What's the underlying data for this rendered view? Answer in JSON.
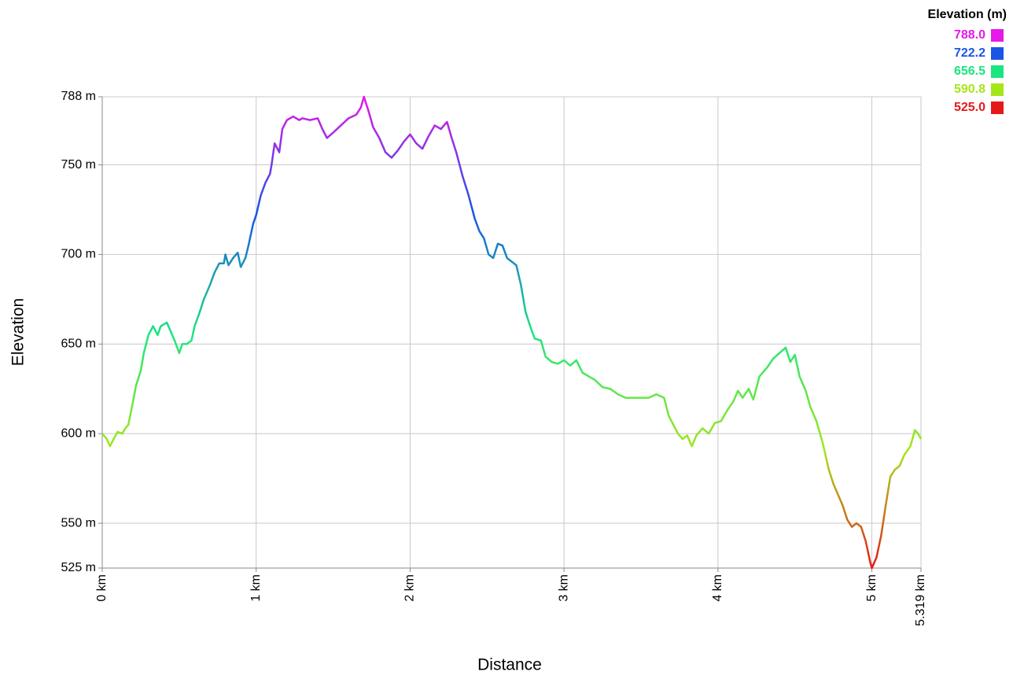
{
  "chart_data": {
    "type": "line",
    "xlabel": "Distance",
    "ylabel": "Elevation",
    "legend_title": "Elevation (m)",
    "color_scale": [
      {
        "value": 788,
        "label": "788.0",
        "color": "#e619e6"
      },
      {
        "value": 722.2,
        "label": "722.2",
        "color": "#1a55e6"
      },
      {
        "value": 656.5,
        "label": "656.5",
        "color": "#19e680"
      },
      {
        "value": 590.8,
        "label": "590.8",
        "color": "#a6e619"
      },
      {
        "value": 525,
        "label": "525.0",
        "color": "#e61919"
      }
    ],
    "grid": true,
    "xlim": [
      0,
      5.319
    ],
    "ylim": [
      525,
      788
    ],
    "xticks": [
      {
        "value": 0,
        "label": "0 km"
      },
      {
        "value": 1,
        "label": "1 km"
      },
      {
        "value": 2,
        "label": "2 km"
      },
      {
        "value": 3,
        "label": "3 km"
      },
      {
        "value": 4,
        "label": "4 km"
      },
      {
        "value": 5,
        "label": "5 km"
      },
      {
        "value": 5.319,
        "label": "5.319 km"
      }
    ],
    "yticks": [
      {
        "value": 525,
        "label": "525 m"
      },
      {
        "value": 550,
        "label": "550 m"
      },
      {
        "value": 600,
        "label": "600 m"
      },
      {
        "value": 650,
        "label": "650 m"
      },
      {
        "value": 700,
        "label": "700 m"
      },
      {
        "value": 750,
        "label": "750 m"
      },
      {
        "value": 788,
        "label": "788 m"
      }
    ],
    "x": [
      0,
      0.03,
      0.05,
      0.08,
      0.1,
      0.13,
      0.15,
      0.17,
      0.2,
      0.22,
      0.25,
      0.27,
      0.3,
      0.33,
      0.36,
      0.38,
      0.42,
      0.45,
      0.47,
      0.5,
      0.52,
      0.55,
      0.58,
      0.6,
      0.63,
      0.66,
      0.7,
      0.73,
      0.76,
      0.79,
      0.8,
      0.82,
      0.85,
      0.88,
      0.9,
      0.93,
      0.95,
      0.98,
      1.0,
      1.03,
      1.06,
      1.09,
      1.1,
      1.12,
      1.15,
      1.17,
      1.2,
      1.24,
      1.28,
      1.3,
      1.35,
      1.4,
      1.43,
      1.46,
      1.5,
      1.55,
      1.6,
      1.65,
      1.68,
      1.7,
      1.73,
      1.76,
      1.8,
      1.84,
      1.88,
      1.92,
      1.96,
      2.0,
      2.04,
      2.08,
      2.12,
      2.16,
      2.2,
      2.24,
      2.27,
      2.3,
      2.34,
      2.38,
      2.42,
      2.45,
      2.48,
      2.51,
      2.54,
      2.57,
      2.6,
      2.63,
      2.66,
      2.69,
      2.72,
      2.75,
      2.78,
      2.81,
      2.85,
      2.88,
      2.92,
      2.96,
      3.0,
      3.04,
      3.08,
      3.12,
      3.16,
      3.2,
      3.25,
      3.3,
      3.35,
      3.4,
      3.45,
      3.5,
      3.55,
      3.6,
      3.65,
      3.68,
      3.71,
      3.74,
      3.77,
      3.8,
      3.83,
      3.86,
      3.9,
      3.94,
      3.98,
      4.02,
      4.06,
      4.1,
      4.13,
      4.16,
      4.2,
      4.23,
      4.27,
      4.32,
      4.36,
      4.4,
      4.44,
      4.47,
      4.5,
      4.53,
      4.57,
      4.6,
      4.64,
      4.68,
      4.72,
      4.75,
      4.78,
      4.81,
      4.84,
      4.87,
      4.9,
      4.93,
      4.96,
      4.99,
      5.0,
      5.03,
      5.06,
      5.09,
      5.12,
      5.15,
      5.18,
      5.21,
      5.25,
      5.28,
      5.3,
      5.319
    ],
    "values": [
      600,
      597,
      593,
      598,
      601,
      600,
      603,
      605,
      618,
      627,
      635,
      645,
      655,
      660,
      655,
      660,
      662,
      656,
      652,
      645,
      650,
      650,
      652,
      660,
      667,
      675,
      683,
      690,
      695,
      695,
      700,
      694,
      698,
      701,
      693,
      698,
      705,
      717,
      722,
      733,
      740,
      745,
      750,
      762,
      757,
      770,
      775,
      777,
      775,
      776,
      775,
      776,
      770,
      765,
      768,
      772,
      776,
      778,
      782,
      788,
      780,
      771,
      765,
      757,
      754,
      758,
      763,
      767,
      762,
      759,
      766,
      772,
      770,
      774,
      765,
      757,
      744,
      733,
      720,
      713,
      709,
      700,
      698,
      706,
      705,
      698,
      696,
      694,
      683,
      668,
      660,
      653,
      652,
      643,
      640,
      639,
      641,
      638,
      641,
      634,
      632,
      630,
      626,
      625,
      622,
      620,
      620,
      620,
      620,
      622,
      620,
      610,
      605,
      600,
      597,
      599,
      593,
      599,
      603,
      600,
      606,
      607,
      613,
      618,
      624,
      620,
      625,
      619,
      632,
      637,
      642,
      645,
      648,
      640,
      644,
      632,
      624,
      615,
      607,
      595,
      580,
      572,
      566,
      560,
      552,
      548,
      550,
      548,
      540,
      528,
      525,
      531,
      543,
      560,
      576,
      580,
      582,
      588,
      593,
      602,
      600,
      597
    ]
  }
}
